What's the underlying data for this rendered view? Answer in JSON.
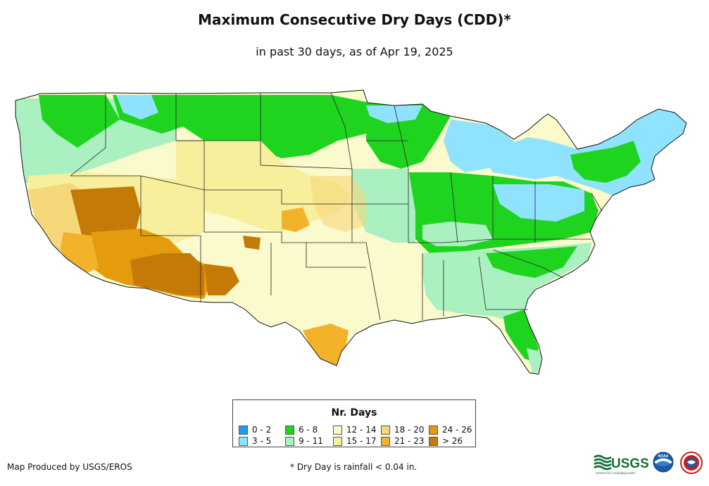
{
  "title": "Maximum Consecutive Dry Days (CDD)*",
  "subtitle": "in past 30 days, as of Apr 19, 2025",
  "legend": {
    "title": "Nr. Days",
    "items": [
      {
        "label": "0 - 2",
        "color": "#1e9bf0"
      },
      {
        "label": "3 - 5",
        "color": "#8fe3ff"
      },
      {
        "label": "6 - 8",
        "color": "#1fd41f"
      },
      {
        "label": "9 - 11",
        "color": "#aaf0c0"
      },
      {
        "label": "12 - 14",
        "color": "#fafacd"
      },
      {
        "label": "15 - 17",
        "color": "#f7ef9b"
      },
      {
        "label": "18 - 20",
        "color": "#f6d77a"
      },
      {
        "label": "21 - 23",
        "color": "#f2b32a"
      },
      {
        "label": "24 - 26",
        "color": "#e59b0e"
      },
      {
        "label": "> 26",
        "color": "#c57a08"
      }
    ]
  },
  "footer": {
    "produced_by": "Map Produced by USGS/EROS",
    "note": "* Dry Day is rainfall < 0.04 in."
  },
  "logos": {
    "usgs": "USGS",
    "usgs_tagline": "science for a changing world",
    "noaa": "NOAA"
  }
}
